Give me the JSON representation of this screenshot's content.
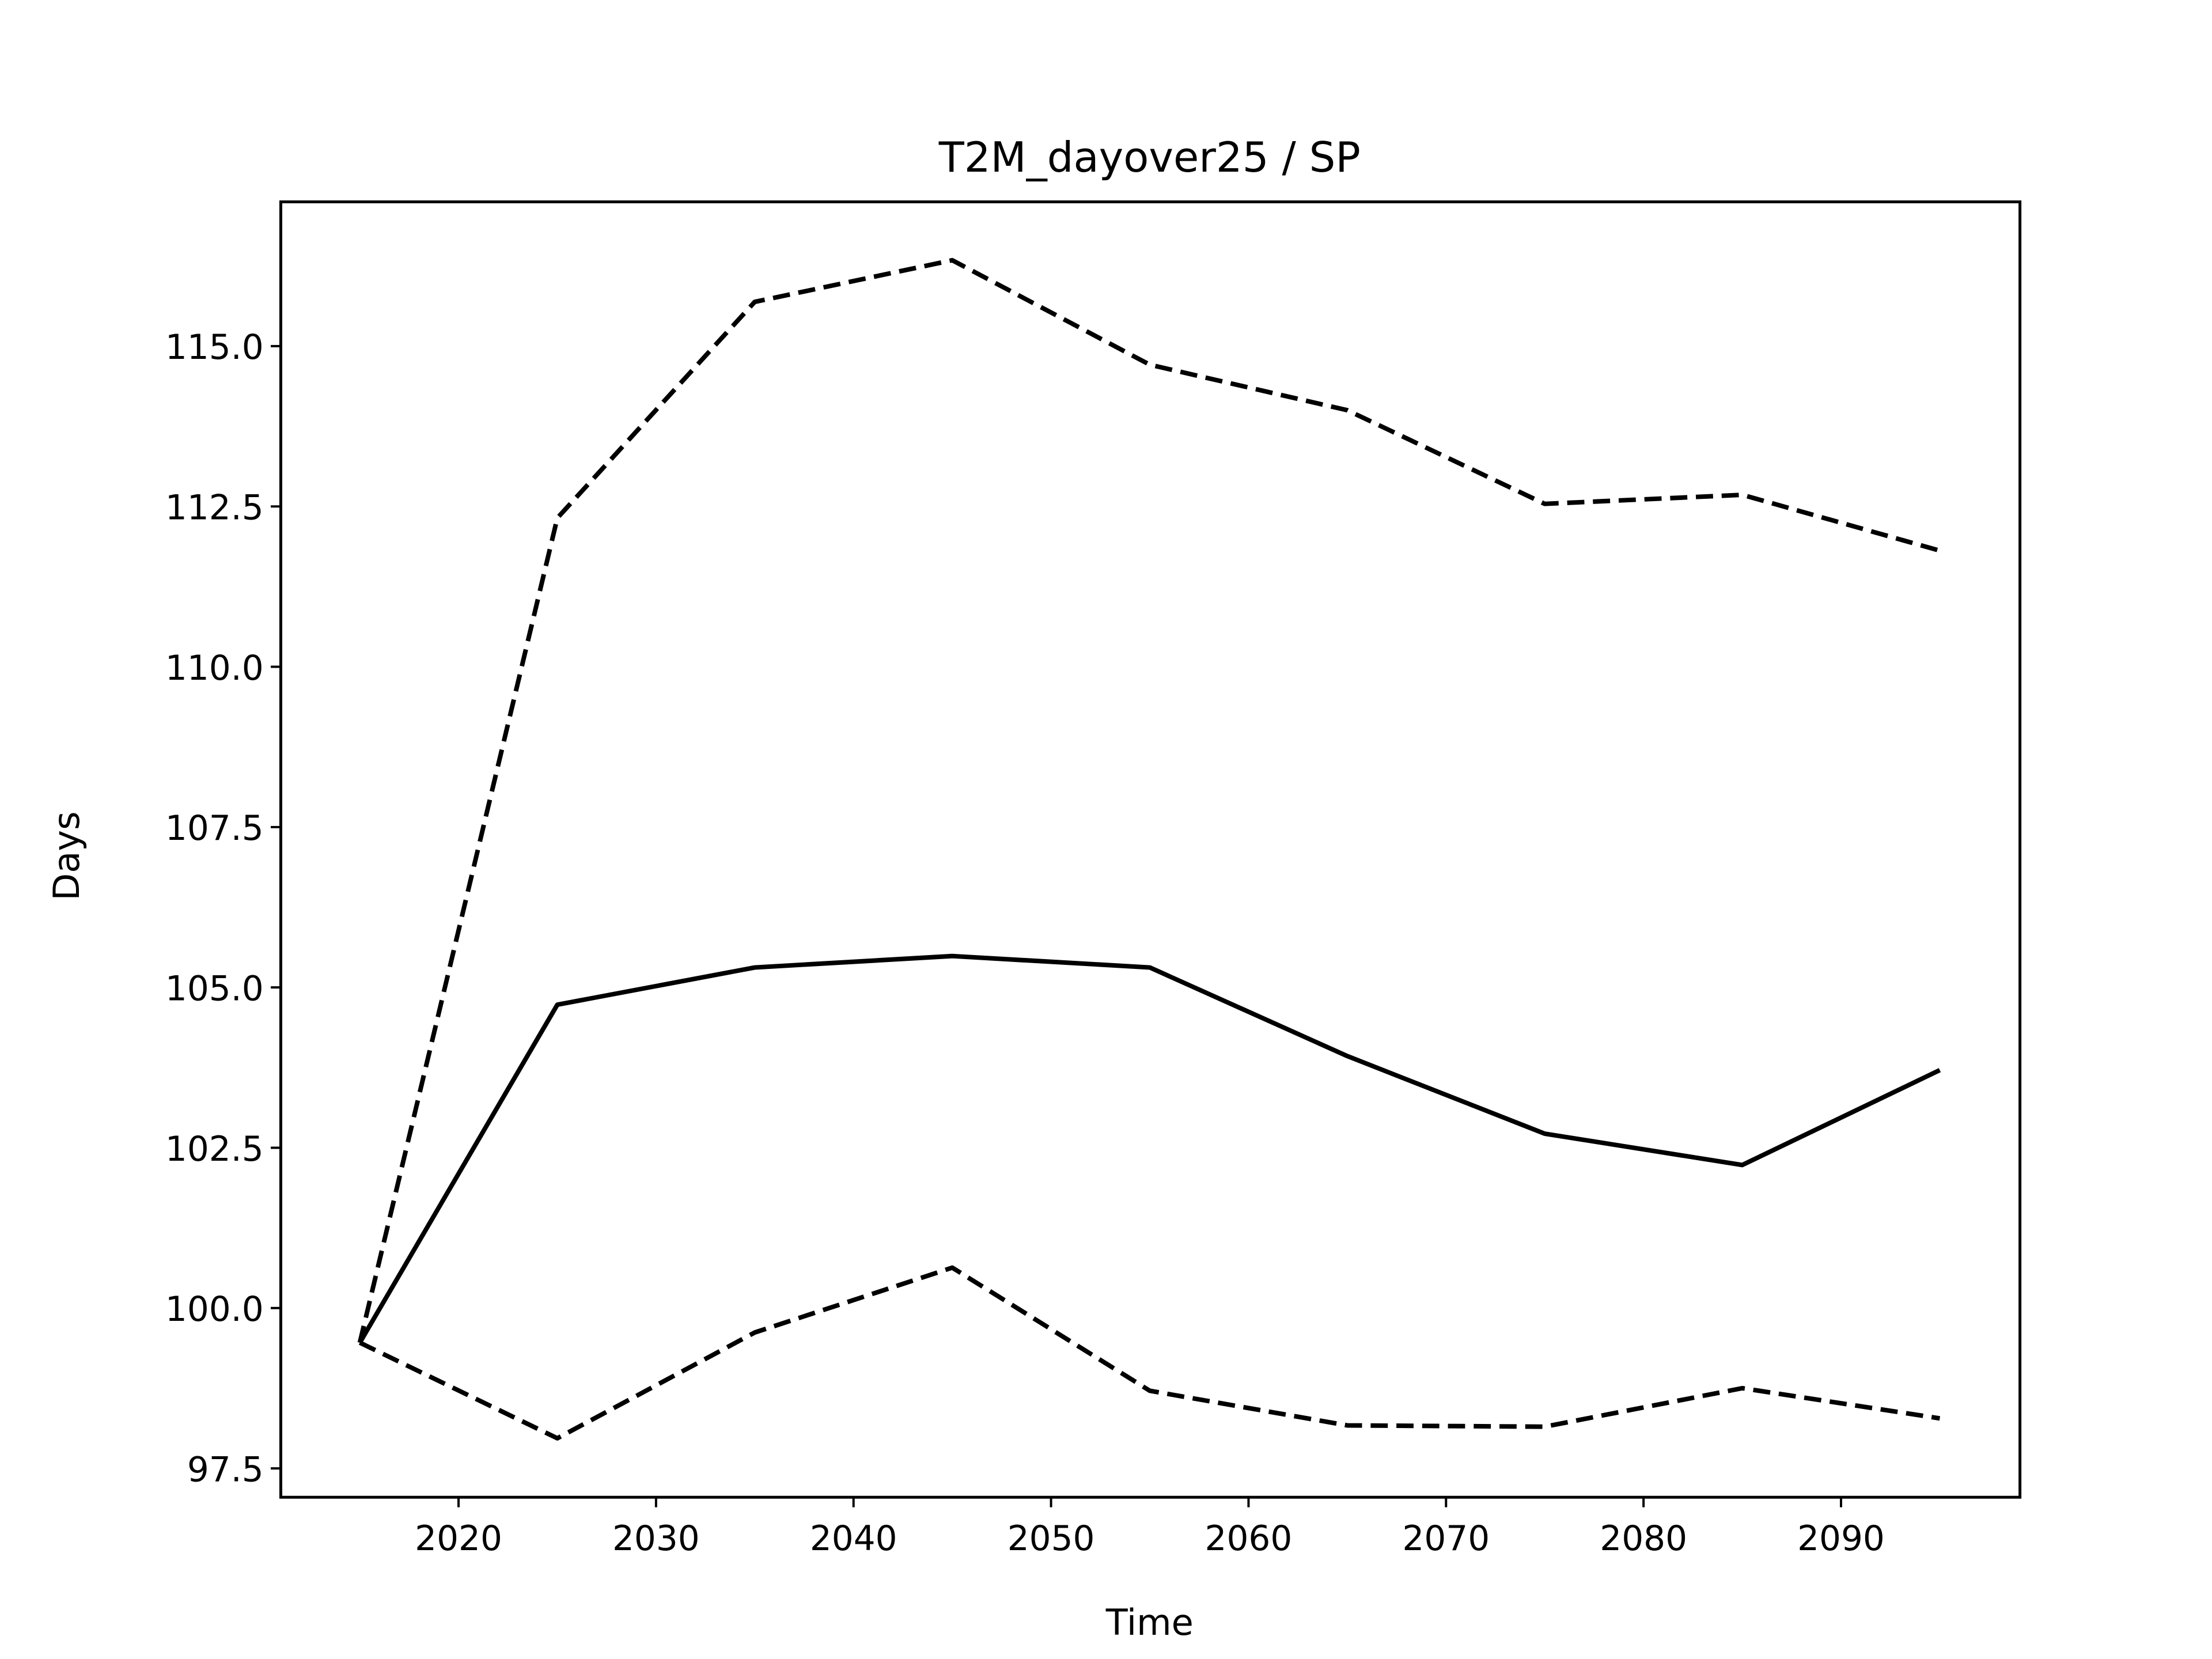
{
  "chart_data": {
    "type": "line",
    "title": "T2M_dayover25 / SP",
    "xlabel": "Time",
    "ylabel": "Days",
    "x": [
      2015,
      2025,
      2035,
      2045,
      2055,
      2065,
      2075,
      2085,
      2095
    ],
    "series": [
      {
        "color": "#000000",
        "linestyle": "solid",
        "values": [
          99.46,
          104.73,
          105.31,
          105.49,
          105.31,
          103.93,
          102.72,
          102.23,
          103.71
        ]
      },
      {
        "color": "#000000",
        "linestyle": "dashed",
        "values": [
          99.46,
          112.32,
          115.69,
          116.34,
          114.71,
          114.0,
          112.54,
          112.68,
          111.81
        ]
      },
      {
        "color": "#000000",
        "linestyle": "dashed",
        "values": [
          99.46,
          97.97,
          99.62,
          100.63,
          98.71,
          98.17,
          98.15,
          98.75,
          98.28
        ]
      }
    ],
    "xlim": [
      2011.0,
      2099.06
    ],
    "xticks": [
      2020,
      2030,
      2040,
      2050,
      2060,
      2070,
      2080,
      2090
    ],
    "ylim": [
      97.05,
      117.25
    ],
    "yticks": [
      97.5,
      {
        "value": 100,
        "label": "100.0"
      },
      102.5,
      {
        "value": 105,
        "label": "105.0"
      },
      107.5,
      {
        "value": 110,
        "label": "110.0"
      },
      112.5,
      {
        "value": 115,
        "label": "115.0"
      }
    ],
    "grid": false
  }
}
